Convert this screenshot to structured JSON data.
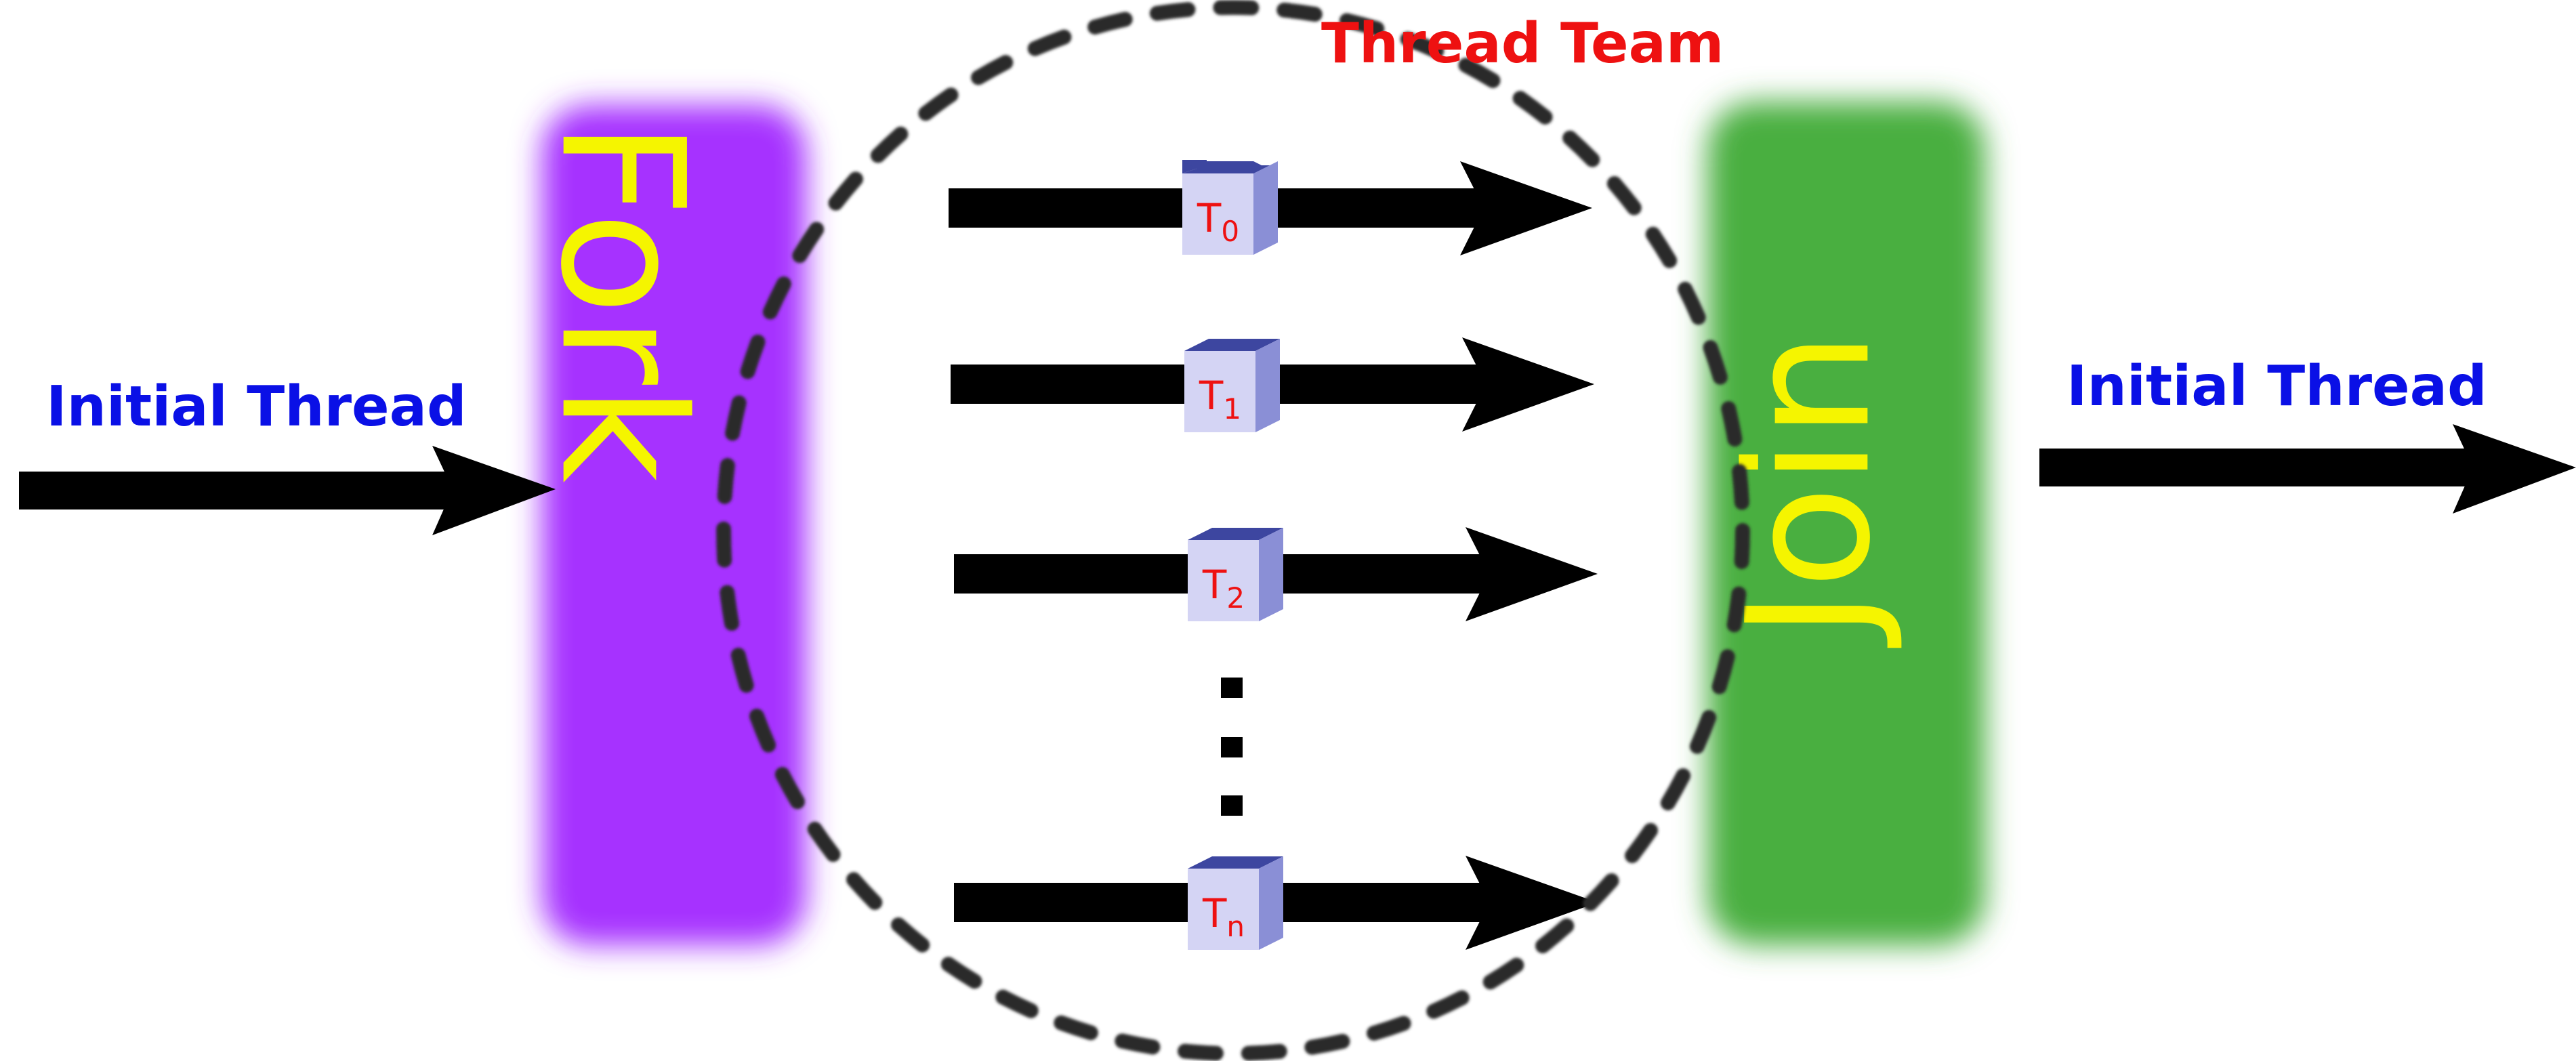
{
  "diagram": {
    "input_label": "Initial Thread",
    "output_label": "Initial Thread",
    "team_label": "Thread Team",
    "fork_label": "Fork",
    "join_label": "Join",
    "ellipsis": "...",
    "threads": [
      {
        "letter": "T",
        "sub": "0"
      },
      {
        "letter": "T",
        "sub": "1"
      },
      {
        "letter": "T",
        "sub": "2"
      },
      {
        "letter": "T",
        "sub": "n"
      }
    ]
  },
  "colors": {
    "label_blue": "#0a10e6",
    "label_red": "#ee1111",
    "fork_purple": "#a633ff",
    "join_green": "#4aaf3f",
    "text_yellow": "#f5f500",
    "arrow_black": "#000000",
    "cube_front": "#d4d4f4",
    "cube_top": "#3d46a0",
    "cube_side": "#8a8fd6",
    "dash_gray": "#2b2b2b"
  }
}
